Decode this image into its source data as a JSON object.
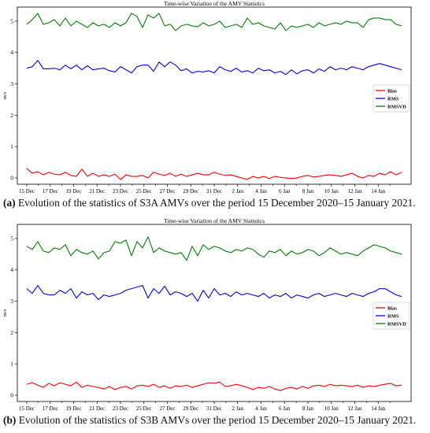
{
  "chart_data": [
    {
      "type": "line",
      "title": "Time-wise Variation of the AMV Statistics",
      "ylabel": "m/s",
      "xlabel": "",
      "ylim": [
        -0.2,
        5.45
      ],
      "yticks": [
        0,
        1,
        2,
        3,
        4,
        5
      ],
      "xticks": [
        "15 Dec",
        "17 Dec",
        "19 Dec",
        "21 Dec",
        "23 Dec",
        "25 Dec",
        "27 Dec",
        "29 Dec",
        "31 Dec",
        "2 Jan",
        "4 Jan",
        "6 Jan",
        "8 Jan",
        "10 Jan",
        "12 Jan",
        "14 Jan"
      ],
      "grid": false,
      "legend_position": "right",
      "series": [
        {
          "name": "Bias",
          "color": "#ff0000",
          "values": [
            0.3,
            0.15,
            0.2,
            0.1,
            0.18,
            0.12,
            0.1,
            0.18,
            0.08,
            0.05,
            0.28,
            0.05,
            0.15,
            0.05,
            0.1,
            0.05,
            0.12,
            -0.05,
            0.1,
            0.05,
            0.05,
            0.08,
            0.0,
            0.18,
            0.12,
            0.08,
            0.15,
            0.05,
            0.12,
            0.05,
            0.1,
            0.15,
            0.1,
            0.1,
            0.18,
            0.12,
            0.08,
            0.1,
            0.05,
            0.0,
            -0.05,
            0.05,
            0.0,
            0.05,
            -0.02,
            0.05,
            0.02,
            0.0,
            -0.02,
            0.0,
            0.05,
            0.08,
            0.03,
            0.05,
            0.08,
            0.1,
            0.08,
            0.05,
            0.1,
            0.15,
            0.05,
            0.0,
            0.08,
            0.05,
            0.15,
            0.1,
            0.2,
            0.1,
            0.18
          ]
        },
        {
          "name": "RMS",
          "color": "#0000ff",
          "values": [
            3.5,
            3.55,
            3.75,
            3.48,
            3.48,
            3.5,
            3.45,
            3.6,
            3.48,
            3.6,
            3.45,
            3.58,
            3.45,
            3.48,
            3.5,
            3.42,
            3.38,
            3.55,
            3.45,
            3.35,
            3.55,
            3.6,
            3.6,
            3.4,
            3.7,
            3.55,
            3.7,
            3.6,
            3.42,
            3.48,
            3.35,
            3.4,
            3.38,
            3.42,
            3.35,
            3.55,
            3.45,
            3.4,
            3.5,
            3.38,
            3.42,
            3.35,
            3.5,
            3.42,
            3.45,
            3.35,
            3.4,
            3.3,
            3.45,
            3.32,
            3.42,
            3.45,
            3.35,
            3.48,
            3.4,
            3.55,
            3.45,
            3.5,
            3.45,
            3.55,
            3.5,
            3.45,
            3.55,
            3.6,
            3.65,
            3.6,
            3.55,
            3.5,
            3.45
          ]
        },
        {
          "name": "RMSVD",
          "color": "#008000",
          "values": [
            4.9,
            5.05,
            5.25,
            4.9,
            4.95,
            5.05,
            4.85,
            5.1,
            4.85,
            5.0,
            4.9,
            4.8,
            4.95,
            4.85,
            4.9,
            4.8,
            4.95,
            4.85,
            4.95,
            5.25,
            5.15,
            4.8,
            5.2,
            5.1,
            5.25,
            4.85,
            4.9,
            4.7,
            4.85,
            4.9,
            4.85,
            4.82,
            4.95,
            4.85,
            4.9,
            5.0,
            4.8,
            4.85,
            4.9,
            4.8,
            5.1,
            4.9,
            4.95,
            4.85,
            4.8,
            4.75,
            4.95,
            4.7,
            4.85,
            4.8,
            4.85,
            4.9,
            4.8,
            4.95,
            4.85,
            4.9,
            4.95,
            4.9,
            5.0,
            4.95,
            4.95,
            4.8,
            5.05,
            5.1,
            5.1,
            5.05,
            5.05,
            4.9,
            4.85
          ]
        }
      ]
    },
    {
      "type": "line",
      "title": "Time-wise Variation of the AMV Statistics",
      "ylabel": "m/s",
      "xlabel": "",
      "ylim": [
        -0.2,
        5.45
      ],
      "yticks": [
        0,
        1,
        2,
        3,
        4,
        5
      ],
      "xticks": [
        "15 Dec",
        "17 Dec",
        "19 Dec",
        "21 Dec",
        "23 Dec",
        "25 Dec",
        "27 Dec",
        "29 Dec",
        "31 Dec",
        "2 Jan",
        "4 Jan",
        "6 Jan",
        "8 Jan",
        "10 Jan",
        "12 Jan",
        "14 Jan"
      ],
      "grid": false,
      "legend_position": "right",
      "series": [
        {
          "name": "Bias",
          "color": "#ff0000",
          "values": [
            0.35,
            0.4,
            0.32,
            0.25,
            0.38,
            0.3,
            0.4,
            0.35,
            0.3,
            0.42,
            0.25,
            0.32,
            0.28,
            0.25,
            0.2,
            0.28,
            0.18,
            0.25,
            0.28,
            0.2,
            0.3,
            0.32,
            0.28,
            0.35,
            0.25,
            0.3,
            0.22,
            0.3,
            0.28,
            0.32,
            0.25,
            0.3,
            0.35,
            0.4,
            0.38,
            0.42,
            0.28,
            0.3,
            0.35,
            0.3,
            0.25,
            0.18,
            0.25,
            0.22,
            0.28,
            0.2,
            0.15,
            0.22,
            0.25,
            0.2,
            0.28,
            0.22,
            0.3,
            0.32,
            0.28,
            0.35,
            0.3,
            0.32,
            0.3,
            0.28,
            0.32,
            0.25,
            0.3,
            0.28,
            0.32,
            0.35,
            0.38,
            0.3,
            0.32
          ]
        },
        {
          "name": "RMS",
          "color": "#0000ff",
          "values": [
            3.4,
            3.25,
            3.5,
            3.25,
            3.2,
            3.2,
            3.35,
            3.25,
            3.4,
            3.1,
            3.3,
            3.2,
            3.25,
            3.05,
            3.2,
            3.15,
            3.2,
            3.25,
            3.35,
            3.4,
            3.45,
            3.5,
            3.1,
            3.4,
            3.25,
            3.48,
            3.2,
            3.3,
            3.25,
            3.15,
            3.25,
            3.0,
            3.35,
            3.1,
            3.4,
            3.2,
            3.25,
            3.15,
            3.3,
            3.2,
            3.25,
            3.2,
            3.15,
            3.25,
            3.1,
            3.2,
            3.15,
            3.25,
            3.1,
            3.2,
            3.15,
            3.1,
            3.2,
            3.25,
            3.15,
            3.2,
            3.25,
            3.2,
            3.15,
            3.25,
            3.2,
            3.15,
            3.25,
            3.3,
            3.4,
            3.4,
            3.3,
            3.2,
            3.15
          ]
        },
        {
          "name": "RMSVD",
          "color": "#008000",
          "values": [
            4.75,
            4.65,
            4.9,
            4.6,
            4.55,
            4.7,
            4.65,
            4.8,
            4.45,
            4.65,
            4.55,
            4.5,
            4.6,
            4.35,
            4.55,
            4.6,
            4.9,
            4.85,
            4.95,
            4.45,
            4.9,
            4.7,
            5.05,
            4.55,
            4.7,
            4.6,
            4.55,
            4.5,
            4.55,
            4.3,
            4.75,
            4.45,
            4.8,
            4.65,
            4.75,
            4.7,
            4.6,
            4.55,
            4.65,
            4.6,
            4.7,
            4.65,
            4.5,
            4.4,
            4.6,
            4.55,
            4.65,
            4.45,
            4.6,
            4.5,
            4.55,
            4.65,
            4.6,
            4.45,
            4.55,
            4.7,
            4.6,
            4.5,
            4.55,
            4.5,
            4.45,
            4.6,
            4.7,
            4.8,
            4.75,
            4.7,
            4.6,
            4.55,
            4.5
          ]
        }
      ]
    }
  ],
  "captions": [
    {
      "tag": "(a)",
      "text": " Evolution of the statistics of S3A AMVs over the period 15 December 2020–15 January 2021."
    },
    {
      "tag": "(b)",
      "text": " Evolution of the statistics of S3B AMVs over the period 15 December 2020–15 January 2021."
    }
  ]
}
